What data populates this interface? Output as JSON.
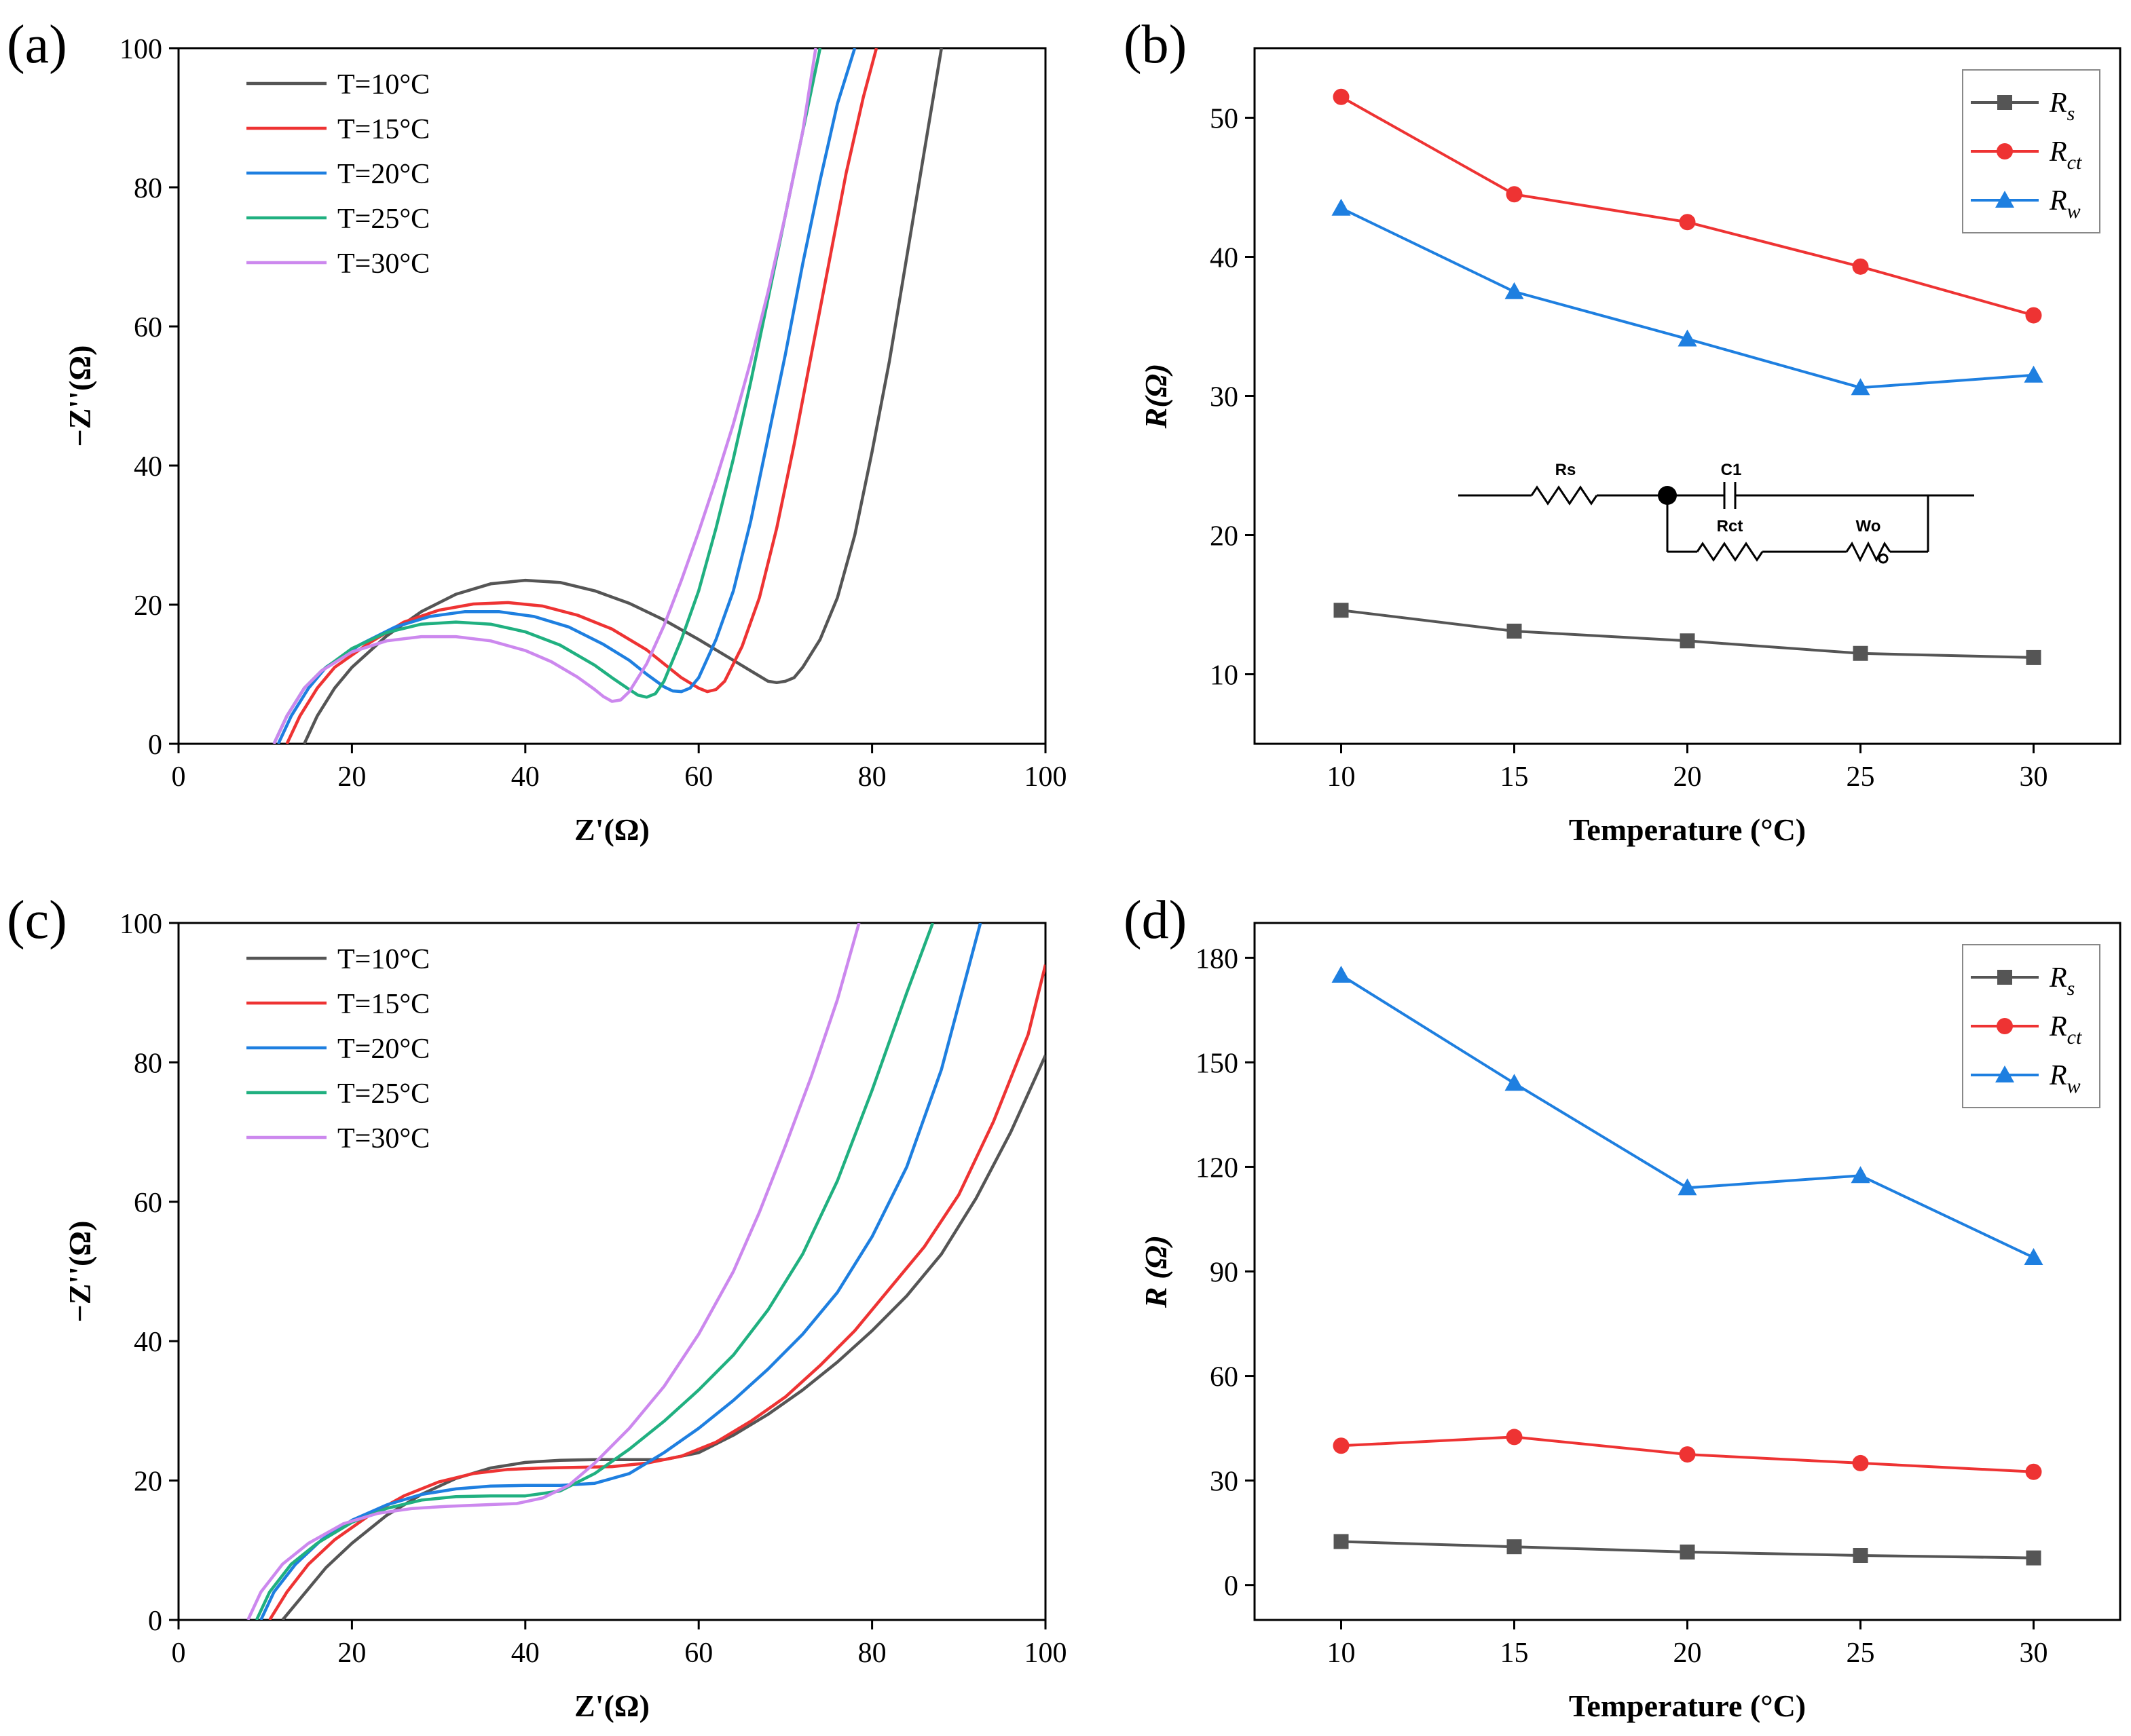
{
  "chart_data": [
    {
      "panel": "(a)",
      "type": "line",
      "title": "",
      "xlabel": "Z'(Ω)",
      "ylabel": "−Z''(Ω)",
      "xlim": [
        0,
        100
      ],
      "ylim": [
        0,
        100
      ],
      "xticks": [
        0,
        20,
        40,
        60,
        80,
        100
      ],
      "yticks": [
        0,
        20,
        40,
        60,
        80,
        100
      ],
      "legend_position": "top-left",
      "series": [
        {
          "name": "T=10°C",
          "color": "#555555",
          "x": [
            14.5,
            16,
            18,
            20,
            24,
            28,
            32,
            36,
            40,
            44,
            48,
            52,
            56,
            60,
            64,
            66,
            68,
            69,
            70,
            71,
            72,
            74,
            76,
            78,
            80,
            82,
            84,
            86,
            88
          ],
          "y": [
            0,
            4,
            8,
            11,
            15.5,
            19,
            21.5,
            23,
            23.5,
            23.2,
            22,
            20.2,
            17.8,
            15,
            12,
            10.5,
            9,
            8.8,
            9,
            9.5,
            11,
            15,
            21,
            30,
            42,
            55,
            70,
            85,
            100
          ]
        },
        {
          "name": "T=15°C",
          "color": "#EE3333",
          "x": [
            12.5,
            14,
            16,
            18,
            22,
            26,
            30,
            34,
            38,
            42,
            46,
            50,
            54,
            56,
            58,
            60,
            61,
            62,
            63,
            65,
            67,
            69,
            71,
            73,
            75,
            77,
            79,
            80.5
          ],
          "y": [
            0,
            4,
            8,
            11,
            14.5,
            17.5,
            19.2,
            20.1,
            20.3,
            19.8,
            18.5,
            16.5,
            13.5,
            11.5,
            9.5,
            8,
            7.5,
            7.8,
            9,
            14,
            21,
            31,
            43,
            56,
            69,
            82,
            93,
            100
          ]
        },
        {
          "name": "T=20°C",
          "color": "#1E7FE0",
          "x": [
            11.5,
            13,
            15,
            17,
            21,
            25,
            29,
            33,
            37,
            41,
            45,
            49,
            52,
            54,
            56,
            57,
            58,
            59,
            60,
            62,
            64,
            66,
            68,
            70,
            72,
            74,
            76,
            78
          ],
          "y": [
            0,
            4,
            8,
            11,
            14.3,
            16.8,
            18.3,
            19,
            19,
            18.3,
            16.8,
            14.3,
            12,
            10,
            8.2,
            7.6,
            7.5,
            8,
            9.5,
            15,
            22,
            32,
            44,
            56,
            69,
            81,
            92,
            100
          ]
        },
        {
          "name": "T=25°C",
          "color": "#20B080",
          "x": [
            11,
            12.5,
            14.5,
            16.5,
            20,
            24,
            28,
            32,
            36,
            40,
            44,
            48,
            50,
            52,
            53,
            54,
            55,
            56,
            58,
            60,
            62,
            64,
            66,
            68,
            70,
            72,
            74
          ],
          "y": [
            0,
            4,
            8,
            10.5,
            13.7,
            16,
            17.2,
            17.5,
            17.2,
            16.1,
            14.2,
            11.3,
            9.5,
            7.8,
            7,
            6.7,
            7.2,
            9,
            15,
            22,
            31,
            41,
            52,
            64,
            76,
            88,
            100
          ]
        },
        {
          "name": "T=30°C",
          "color": "#CC88EE",
          "x": [
            11,
            12.5,
            14.5,
            16.5,
            20,
            24,
            28,
            32,
            36,
            40,
            43,
            46,
            48,
            49,
            50,
            51,
            52,
            54,
            56,
            58,
            60,
            62,
            64,
            66,
            68,
            70,
            72,
            73.5
          ],
          "y": [
            0,
            4,
            8,
            10.5,
            13.2,
            14.8,
            15.4,
            15.4,
            14.8,
            13.4,
            11.8,
            9.6,
            7.8,
            6.8,
            6.1,
            6.3,
            7.5,
            11.5,
            17,
            23.5,
            30.5,
            38,
            46,
            55,
            65,
            76,
            88,
            100
          ]
        }
      ]
    },
    {
      "panel": "(b)",
      "type": "line",
      "title": "",
      "xlabel": "Temperature (°C)",
      "ylabel": "R(Ω)",
      "xlim": [
        7.5,
        32.5
      ],
      "ylim": [
        5,
        55
      ],
      "xticks": [
        10,
        15,
        20,
        25,
        30
      ],
      "yticks": [
        10,
        20,
        30,
        40,
        50
      ],
      "categories": [
        10,
        15,
        20,
        25,
        30
      ],
      "legend_position": "top-right",
      "series": [
        {
          "name": "Rs",
          "base": "R",
          "sub": "s",
          "color": "#555555",
          "marker": "square",
          "values": [
            14.6,
            13.1,
            12.4,
            11.5,
            11.2
          ]
        },
        {
          "name": "Rct",
          "base": "R",
          "sub": "ct",
          "color": "#EE3333",
          "marker": "circle",
          "values": [
            51.5,
            44.5,
            42.5,
            39.3,
            35.8
          ]
        },
        {
          "name": "Rw",
          "base": "R",
          "sub": "w",
          "color": "#1E7FE0",
          "marker": "triangle",
          "values": [
            43.5,
            37.5,
            34.1,
            30.6,
            31.5
          ]
        }
      ],
      "annotation": {
        "type": "equivalent-circuit",
        "labels": {
          "rs": "Rs",
          "c1": "C1",
          "rct": "Rct",
          "wo": "Wo"
        }
      }
    },
    {
      "panel": "(c)",
      "type": "line",
      "title": "",
      "xlabel": "Z'(Ω)",
      "ylabel": "−Z''(Ω)",
      "xlim": [
        0,
        100
      ],
      "ylim": [
        0,
        100
      ],
      "xticks": [
        0,
        20,
        40,
        60,
        80,
        100
      ],
      "yticks": [
        0,
        20,
        40,
        60,
        80,
        100
      ],
      "legend_position": "top-left",
      "series": [
        {
          "name": "T=10°C",
          "color": "#555555",
          "x": [
            12,
            14,
            17,
            20,
            24,
            28,
            32,
            36,
            40,
            44,
            48,
            52,
            56,
            60,
            64,
            68,
            72,
            76,
            80,
            84,
            88,
            92,
            96,
            100
          ],
          "y": [
            0,
            3,
            7.5,
            11,
            15,
            18,
            20.3,
            21.8,
            22.6,
            22.9,
            23,
            23,
            23,
            24,
            26.5,
            29.5,
            33,
            37,
            41.5,
            46.5,
            52.5,
            60.5,
            70,
            81
          ]
        },
        {
          "name": "T=15°C",
          "color": "#EE3333",
          "x": [
            10.5,
            12.5,
            15,
            18,
            22,
            26,
            30,
            34,
            38,
            42,
            46,
            50,
            54,
            58,
            62,
            66,
            70,
            74,
            78,
            82,
            86,
            90,
            94,
            98,
            100
          ],
          "y": [
            0,
            4,
            8,
            11.5,
            15,
            17.8,
            19.8,
            21,
            21.6,
            21.8,
            21.9,
            22,
            22.5,
            23.5,
            25.5,
            28.5,
            32,
            36.5,
            41.5,
            47.5,
            53.5,
            61,
            71.5,
            84,
            94
          ]
        },
        {
          "name": "T=20°C",
          "color": "#1E7FE0",
          "x": [
            9.5,
            11,
            13.5,
            16.5,
            20,
            24,
            28,
            32,
            36,
            40,
            44,
            48,
            52,
            56,
            60,
            64,
            68,
            72,
            76,
            80,
            84,
            88,
            92.5
          ],
          "y": [
            0,
            4,
            8,
            11.5,
            14.3,
            16.5,
            18,
            18.8,
            19.2,
            19.3,
            19.3,
            19.6,
            21,
            24,
            27.5,
            31.5,
            36,
            41,
            47,
            55,
            65,
            79,
            100
          ]
        },
        {
          "name": "T=25°C",
          "color": "#20B080",
          "x": [
            9,
            10.5,
            13,
            16,
            20,
            24,
            28,
            32,
            36,
            40,
            44,
            48,
            52,
            56,
            60,
            64,
            68,
            72,
            76,
            80,
            84,
            87
          ],
          "y": [
            0,
            4,
            8,
            11,
            14,
            16,
            17.2,
            17.7,
            17.8,
            17.8,
            18.5,
            21,
            24.5,
            28.5,
            33,
            38,
            44.5,
            52.5,
            63,
            76,
            90,
            100
          ]
        },
        {
          "name": "T=30°C",
          "color": "#CC88EE",
          "x": [
            8,
            9.5,
            12,
            15,
            19,
            23,
            27,
            31,
            35,
            39,
            42,
            45,
            48,
            52,
            56,
            60,
            64,
            67,
            70,
            73,
            76,
            78.5
          ],
          "y": [
            0,
            4,
            8,
            11,
            13.8,
            15.3,
            16,
            16.3,
            16.5,
            16.7,
            17.5,
            19.3,
            22.5,
            27.5,
            33.5,
            41,
            50,
            58.5,
            68,
            78,
            89,
            100
          ]
        }
      ]
    },
    {
      "panel": "(d)",
      "type": "line",
      "title": "",
      "xlabel": "Temperature (°C)",
      "ylabel": "R (Ω)",
      "xlim": [
        7.5,
        32.5
      ],
      "ylim": [
        -10,
        190
      ],
      "xticks": [
        10,
        15,
        20,
        25,
        30
      ],
      "yticks": [
        0,
        30,
        60,
        90,
        120,
        150,
        180
      ],
      "categories": [
        10,
        15,
        20,
        25,
        30
      ],
      "legend_position": "top-right",
      "series": [
        {
          "name": "Rs",
          "base": "R",
          "sub": "s",
          "color": "#555555",
          "marker": "square",
          "values": [
            12.5,
            11,
            9.5,
            8.5,
            7.8
          ]
        },
        {
          "name": "Rct",
          "base": "R",
          "sub": "ct",
          "color": "#EE3333",
          "marker": "circle",
          "values": [
            40,
            42.5,
            37.5,
            35,
            32.5
          ]
        },
        {
          "name": "Rw",
          "base": "R",
          "sub": "w",
          "color": "#1E7FE0",
          "marker": "triangle",
          "values": [
            175,
            144,
            114,
            117.5,
            94
          ]
        }
      ]
    }
  ]
}
